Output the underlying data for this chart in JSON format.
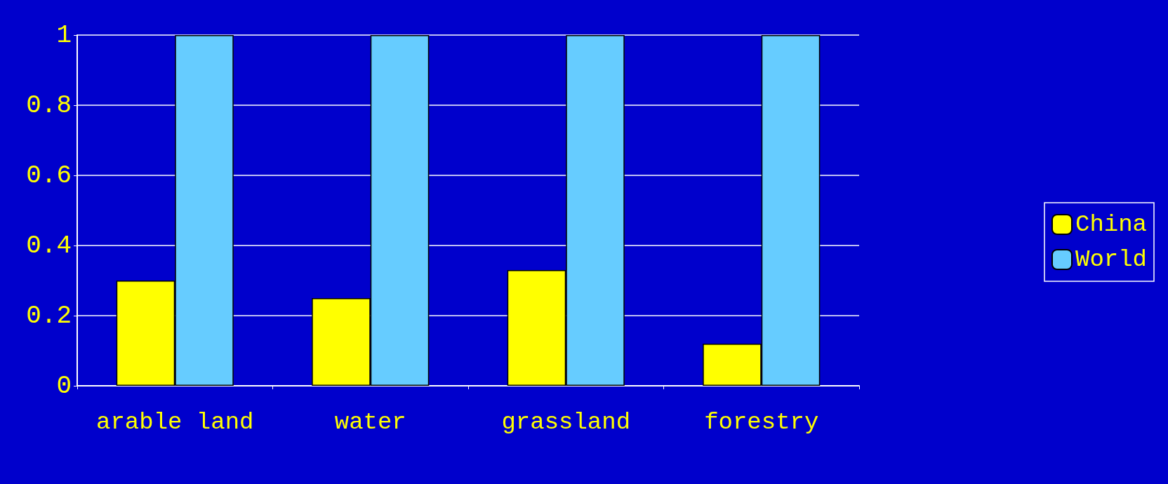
{
  "chart_data": {
    "type": "bar",
    "categories": [
      "arable land",
      "water",
      "grassland",
      "forestry"
    ],
    "series": [
      {
        "name": "China",
        "color": "#ffff00",
        "values": [
          0.3,
          0.25,
          0.33,
          0.12
        ]
      },
      {
        "name": "World",
        "color": "#66ccff",
        "values": [
          1,
          1,
          1,
          1
        ]
      }
    ],
    "ylim": [
      0,
      1
    ],
    "yticks": [
      0,
      0.2,
      0.4,
      0.6,
      0.8,
      1
    ],
    "grid": "y",
    "legend": "right"
  }
}
